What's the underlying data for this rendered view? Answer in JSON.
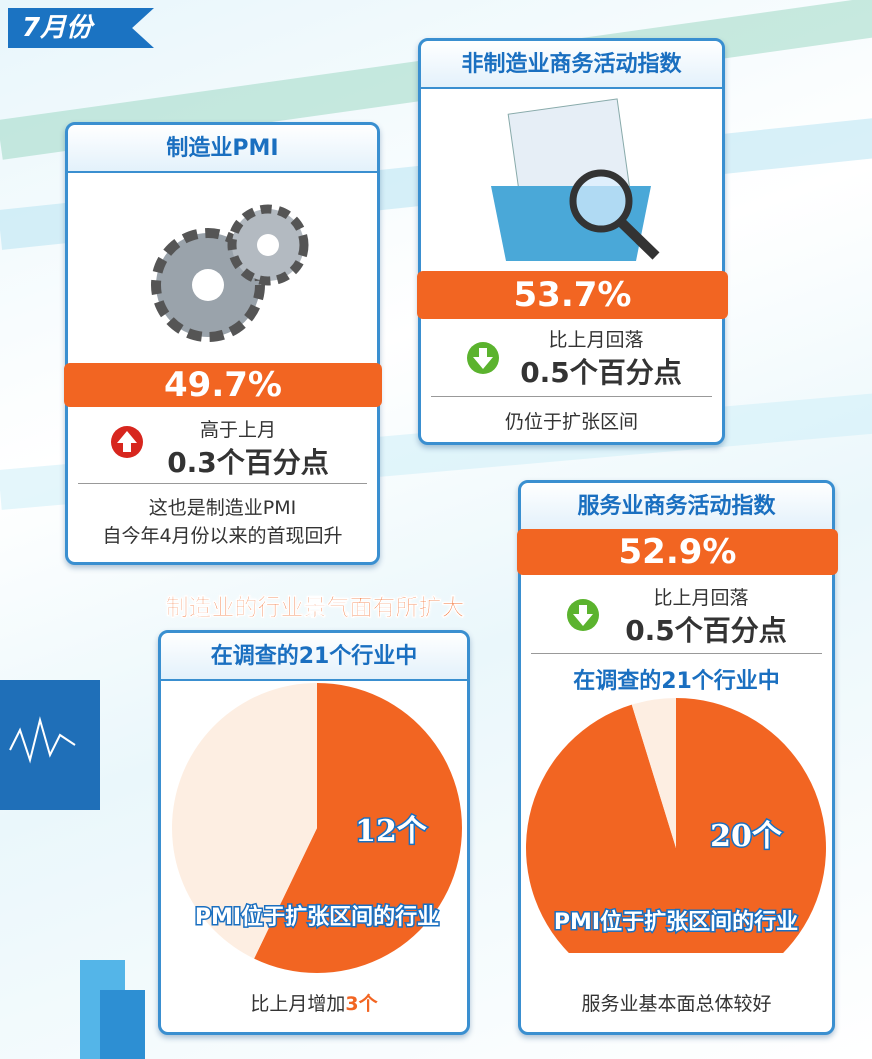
{
  "badge": "7月份",
  "manufacturing": {
    "title": "制造业PMI",
    "value": "49.7%",
    "change_label": "高于上月",
    "change": "0.3个百分点",
    "note": [
      "这也是制造业PMI",
      "自今年4月份以来的首现回升"
    ]
  },
  "non_manufacturing": {
    "title": "非制造业商务活动指数",
    "value": "53.7%",
    "change_label": "比上月回落",
    "change": "0.5个百分点",
    "note": "仍位于扩张区间"
  },
  "services": {
    "title": "服务业商务活动指数",
    "value": "52.9%",
    "change_label": "比上月回落",
    "change": "0.5个百分点"
  },
  "banner": "制造业的行业景气面有所扩大",
  "chart_data": [
    {
      "type": "pie",
      "title": "在调查的21个行业中",
      "categories": [
        "PMI位于扩张区间的行业",
        null
      ],
      "values": [
        12,
        9
      ],
      "value_labels": [
        "12个",
        null
      ],
      "colors": [
        "#f26522",
        "#fdeee2"
      ],
      "note": "比上月增加",
      "note_highlight": "3个"
    },
    {
      "type": "pie",
      "title": "在调查的21个行业中",
      "categories": [
        "PMI位于扩张区间的行业",
        null
      ],
      "values": [
        20,
        1
      ],
      "value_labels": [
        "20个",
        null
      ],
      "colors": [
        "#f26522",
        "#fdeee2"
      ],
      "note": "服务业基本面总体较好"
    }
  ]
}
